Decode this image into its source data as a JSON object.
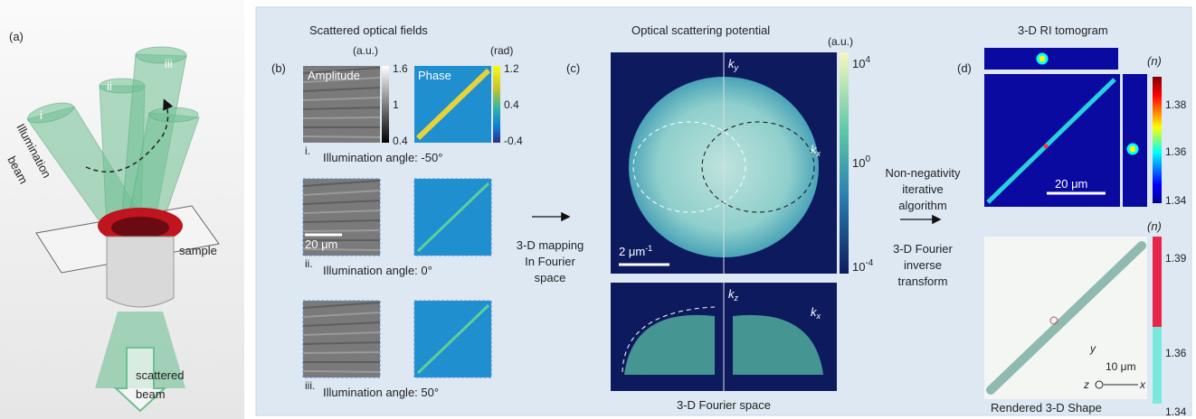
{
  "panel_a": {
    "label": "(a)",
    "beams": [
      "i",
      "ii",
      "iii"
    ],
    "illumination": [
      "Illumination",
      "beam"
    ],
    "sample": "sample",
    "scattered": [
      "scattered",
      "beam"
    ]
  },
  "panel_b": {
    "label": "(b)",
    "title": "Scattered optical fields",
    "amplitude_label": "Amplitude",
    "phase_label": "Phase",
    "amplitude_unit": "(a.u.)",
    "phase_unit": "(rad)",
    "amplitude_ticks": [
      "1.6",
      "1",
      "0.4"
    ],
    "phase_ticks": [
      "1.2",
      "0.4",
      "-0.4"
    ],
    "rows": [
      {
        "index": "i.",
        "caption": "Illumination angle: -50°"
      },
      {
        "index": "ii.",
        "caption": "Illumination angle:  0°"
      },
      {
        "index": "iii.",
        "caption": "Illumination angle:  50°"
      }
    ],
    "scale_bar": "20 μm"
  },
  "mapping_text": [
    "3-D mapping",
    "In Fourier",
    "space"
  ],
  "panel_c": {
    "label": "(c)",
    "title": "Optical scattering potential",
    "unit": "(a.u.)",
    "colorbar_ticks": [
      {
        "base": "10",
        "exp": "4"
      },
      {
        "base": "10",
        "exp": "0"
      },
      {
        "base": "10",
        "exp": "-4"
      }
    ],
    "top_axes": [
      {
        "symbol": "k",
        "sub": "y"
      },
      {
        "symbol": "k",
        "sub": "x"
      }
    ],
    "scale_bar": {
      "base": "2 μm",
      "exp": "-1"
    },
    "bottom_axes": [
      {
        "symbol": "k",
        "sub": "z"
      },
      {
        "symbol": "k",
        "sub": "x"
      }
    ],
    "caption": "3-D Fourier space"
  },
  "reconstruction_text": {
    "top": [
      "Non-negativity",
      "iterative",
      "algorithm"
    ],
    "bottom": [
      "3-D Fourier",
      "inverse",
      "transform"
    ]
  },
  "panel_d": {
    "label": "(d)",
    "title": "3-D RI tomogram",
    "unit": "(n)",
    "colorbar_ticks": [
      "1.38",
      "1.36",
      "1.34"
    ],
    "scale_bar": "20 μm",
    "render_unit": "(n)",
    "render_ticks": [
      "1.39",
      "1.36",
      "1.34"
    ],
    "render_caption": "Rendered 3-D Shape",
    "render_scale_bar": "10 μm",
    "axes": [
      "y",
      "z",
      "x"
    ]
  }
}
